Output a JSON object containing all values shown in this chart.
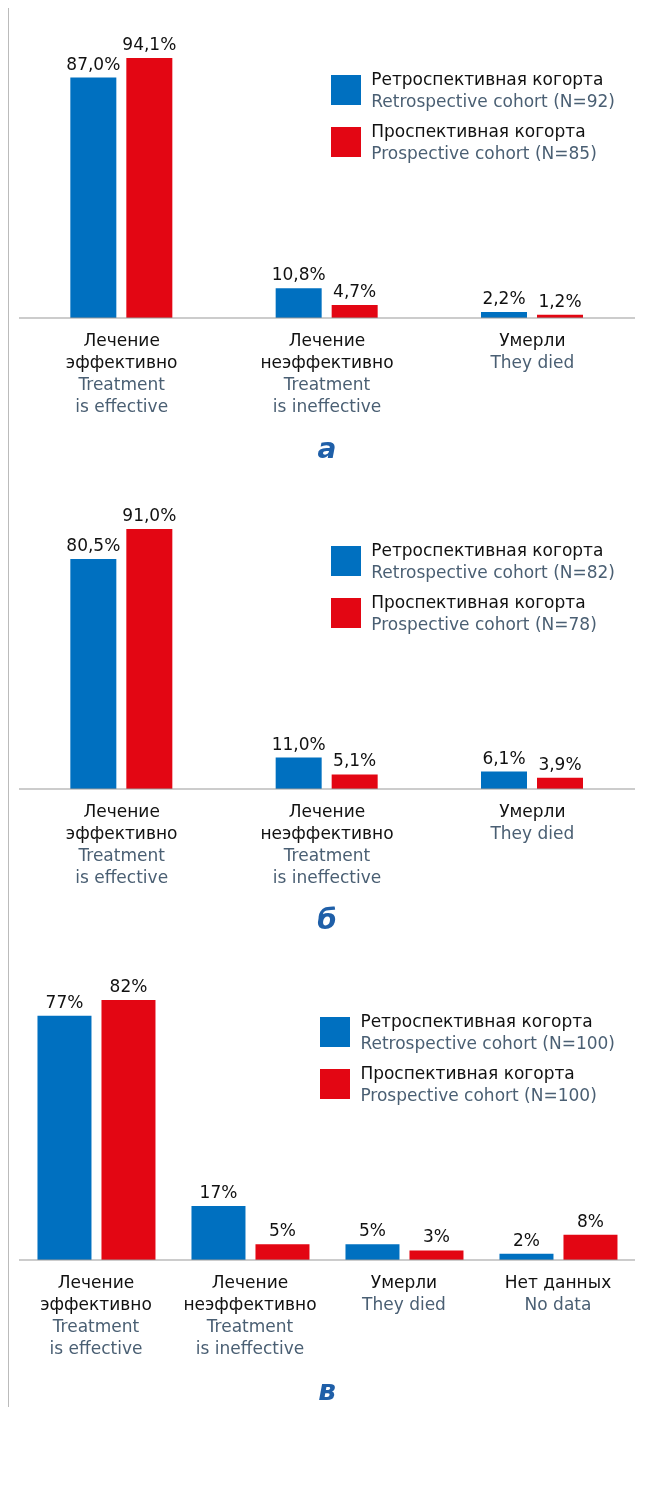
{
  "chart_data": [
    {
      "type": "bar",
      "title": "а",
      "categories": [
        "Лечение\nэффективно\nTreatment\nis effective",
        "Лечение\nнеэффективно\nTreatment\nis ineffective",
        "Умерли\nThey died"
      ],
      "legend": "top right",
      "series": [
        {
          "name": "Ретроспективная когорта\nRetrospective cohort (N=92)",
          "color": "#0070c0",
          "values": [
            87.0,
            10.8,
            2.2
          ],
          "value_labels": [
            "87,0%",
            "10,8%",
            "2,2%"
          ]
        },
        {
          "name": "Проспективная когорта\nProspective cohort (N=85)",
          "color": "#e30613",
          "values": [
            94.1,
            4.7,
            1.2
          ],
          "value_labels": [
            "94,1%",
            "4,7%",
            "1,2%"
          ]
        }
      ]
    },
    {
      "type": "bar",
      "title": "б",
      "categories": [
        "Лечение\nэффективно\nTreatment\nis effective",
        "Лечение\nнеэффективно\nTreatment\nis ineffective",
        "Умерли\nThey died"
      ],
      "legend": "top right",
      "series": [
        {
          "name": "Ретроспективная когорта\nRetrospective cohort (N=82)",
          "color": "#0070c0",
          "values": [
            80.5,
            11.0,
            6.1
          ],
          "value_labels": [
            "80,5%",
            "11,0%",
            "6,1%"
          ]
        },
        {
          "name": "Проспективная когорта\nProspective cohort (N=78)",
          "color": "#e30613",
          "values": [
            91.0,
            5.1,
            3.9
          ],
          "value_labels": [
            "91,0%",
            "5,1%",
            "3,9%"
          ]
        }
      ]
    },
    {
      "type": "bar",
      "title": "в",
      "categories": [
        "Лечение\nэффективно\nTreatment\nis effective",
        "Лечение\nнеэффективно\nTreatment\nis ineffective",
        "Умерли\nThey died",
        "Нет данных\nNo data"
      ],
      "legend": "top right",
      "series": [
        {
          "name": "Ретроспективная когорта\nRetrospective cohort (N=100)",
          "color": "#0070c0",
          "values": [
            77,
            17,
            5,
            2
          ],
          "value_labels": [
            "77%",
            "17%",
            "5%",
            "2%"
          ]
        },
        {
          "name": "Проспективная когорта\nProspective cohort (N=100)",
          "color": "#e30613",
          "values": [
            82,
            5,
            3,
            8
          ],
          "value_labels": [
            "82%",
            "5%",
            "3%",
            "8%"
          ]
        }
      ]
    }
  ]
}
